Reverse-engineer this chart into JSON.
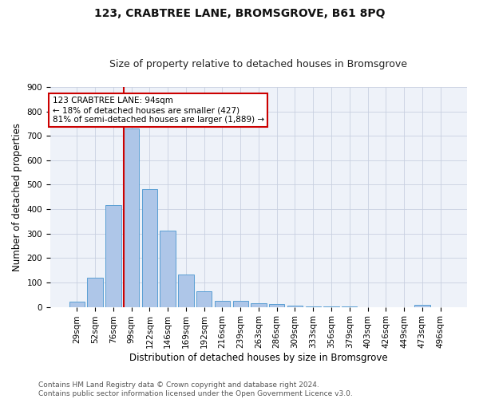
{
  "title1": "123, CRABTREE LANE, BROMSGROVE, B61 8PQ",
  "title2": "Size of property relative to detached houses in Bromsgrove",
  "xlabel": "Distribution of detached houses by size in Bromsgrove",
  "ylabel": "Number of detached properties",
  "footer": "Contains HM Land Registry data © Crown copyright and database right 2024.\nContains public sector information licensed under the Open Government Licence v3.0.",
  "bins": [
    "29sqm",
    "52sqm",
    "76sqm",
    "99sqm",
    "122sqm",
    "146sqm",
    "169sqm",
    "192sqm",
    "216sqm",
    "239sqm",
    "263sqm",
    "286sqm",
    "309sqm",
    "333sqm",
    "356sqm",
    "379sqm",
    "403sqm",
    "426sqm",
    "449sqm",
    "473sqm",
    "496sqm"
  ],
  "values": [
    22,
    120,
    418,
    730,
    483,
    312,
    131,
    65,
    26,
    24,
    15,
    12,
    5,
    3,
    2,
    1,
    0,
    0,
    0,
    8,
    0
  ],
  "bar_color": "#aec6e8",
  "bar_edge_color": "#5a9fd4",
  "vline_color": "#cc0000",
  "annotation_text": "123 CRABTREE LANE: 94sqm\n← 18% of detached houses are smaller (427)\n81% of semi-detached houses are larger (1,889) →",
  "annotation_box_color": "#ffffff",
  "annotation_box_edge_color": "#cc0000",
  "ylim": [
    0,
    900
  ],
  "yticks": [
    0,
    100,
    200,
    300,
    400,
    500,
    600,
    700,
    800,
    900
  ],
  "bg_color": "#eef2f9",
  "title1_fontsize": 10,
  "title2_fontsize": 9,
  "xlabel_fontsize": 8.5,
  "ylabel_fontsize": 8.5,
  "tick_fontsize": 7.5,
  "footer_fontsize": 6.5
}
